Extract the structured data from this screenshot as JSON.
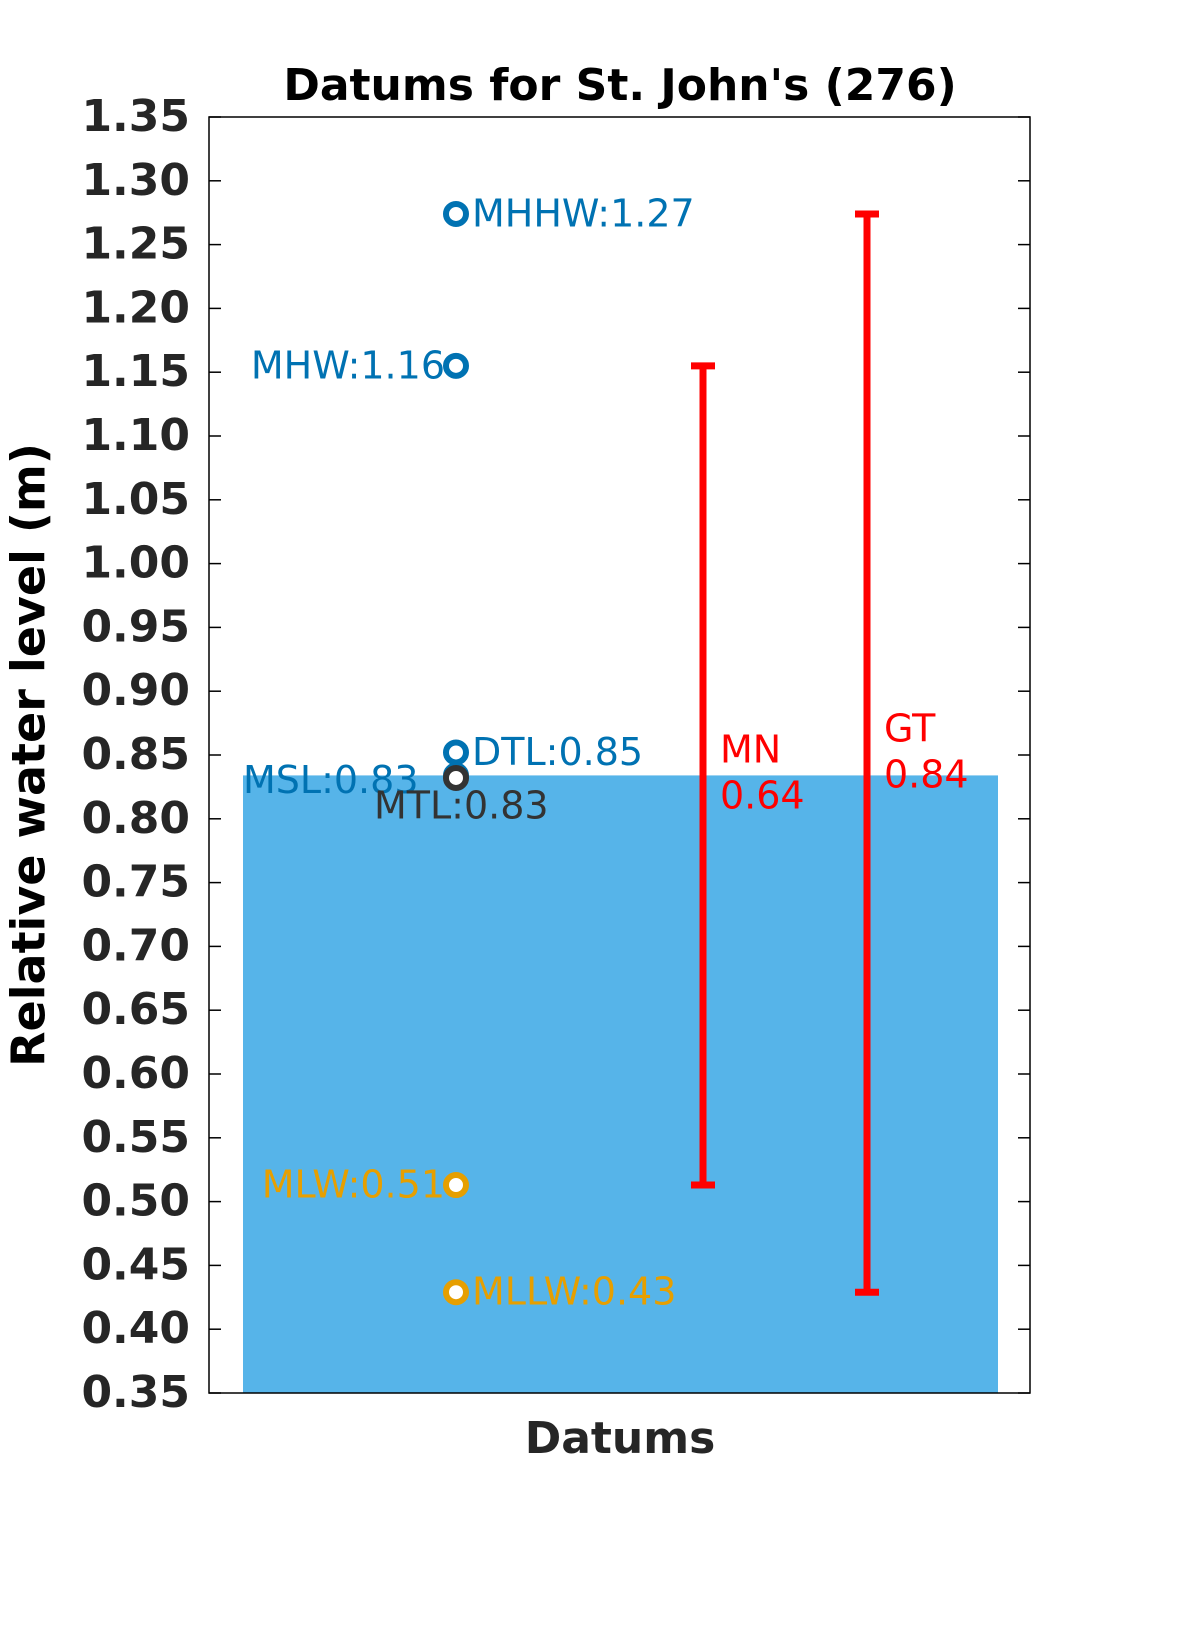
{
  "chart_data": {
    "type": "datums",
    "title": "Datums for St. John's (276)",
    "xlabel": "Datums",
    "ylabel": "Relative water level (m)",
    "ylim": [
      0.35,
      1.35
    ],
    "yticks": [
      1.35,
      {
        "value": 1.3,
        "label": "1.30"
      },
      1.25,
      {
        "value": 1.2,
        "label": "1.20"
      },
      1.15,
      {
        "value": 1.1,
        "label": "1.10"
      },
      1.05,
      {
        "value": 1.0,
        "label": "1.00"
      },
      0.95,
      {
        "value": 0.9,
        "label": "0.90"
      },
      0.85,
      {
        "value": 0.8,
        "label": "0.80"
      },
      0.75,
      {
        "value": 0.7,
        "label": "0.70"
      },
      0.65,
      {
        "value": 0.6,
        "label": "0.60"
      },
      0.55,
      {
        "value": 0.5,
        "label": "0.50"
      },
      0.45,
      {
        "value": 0.4,
        "label": "0.40"
      },
      0.35
    ],
    "bar": {
      "value": 0.834,
      "color": "#56b4e9"
    },
    "points": [
      {
        "value": 1.274,
        "value_label": "MHHW:1.27",
        "color": "#0072b2"
      },
      {
        "value": 1.155,
        "value_label": "MHW:1.16",
        "color": "#0072b2"
      },
      {
        "value": 0.852,
        "value_label": "DTL:0.85",
        "color": "#0072b2"
      },
      {
        "value": 0.834,
        "value_label": "MSL:0.83",
        "color": "#0072b2"
      },
      {
        "value": 0.832,
        "value_label": "MTL:0.83",
        "color": "#333333"
      },
      {
        "value": 0.513,
        "value_label": "MLW:0.51",
        "color": "#e69f00"
      },
      {
        "value": 0.429,
        "value_label": "MLLW:0.43",
        "color": "#e69f00"
      }
    ],
    "ranges": [
      {
        "name": "MN",
        "low": 0.513,
        "high": 1.155,
        "value": 0.64,
        "color": "#ff0000"
      },
      {
        "name": "GT",
        "low": 0.429,
        "high": 1.274,
        "value": 0.84,
        "color": "#ff0000"
      }
    ]
  }
}
